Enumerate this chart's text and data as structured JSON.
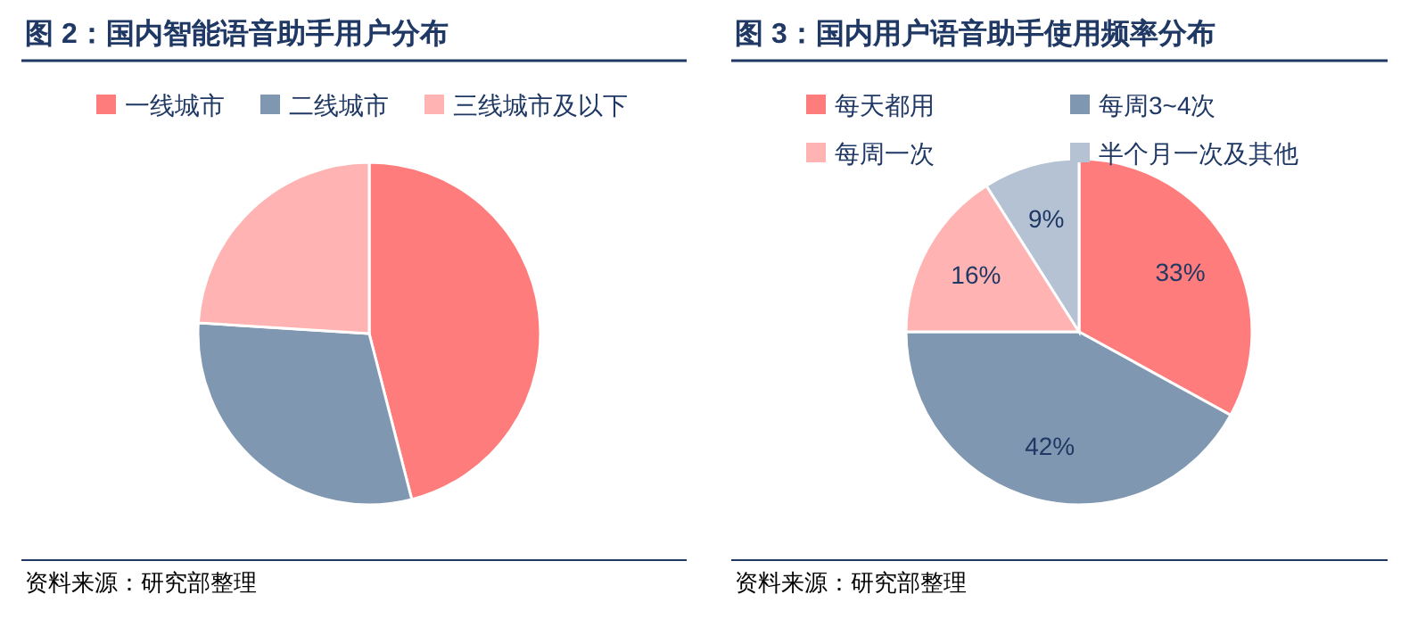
{
  "chart_data": [
    {
      "type": "pie",
      "title": "图 2：国内智能语音助手用户分布",
      "categories": [
        "一线城市",
        "二线城市",
        "三线城市及以下"
      ],
      "values": [
        46,
        30,
        24
      ],
      "colors": [
        "#ff7c7c",
        "#8097b1",
        "#ffb3b3"
      ],
      "legend": "top",
      "annotations": [
        "资料来源：研究部整理"
      ]
    },
    {
      "type": "pie",
      "title": "图 3：国内用户语音助手使用频率分布",
      "categories": [
        "每天都用",
        "每周3~4次",
        "每周一次",
        "半个月一次及其他"
      ],
      "values": [
        33,
        42,
        16,
        9
      ],
      "colors": [
        "#ff7c7c",
        "#8097b1",
        "#ffb3b3",
        "#b4c2d4"
      ],
      "legend": "top",
      "value_labels": [
        "33%",
        "42%",
        "16%",
        "9%"
      ],
      "annotations": [
        "资料来源：研究部整理"
      ]
    }
  ]
}
